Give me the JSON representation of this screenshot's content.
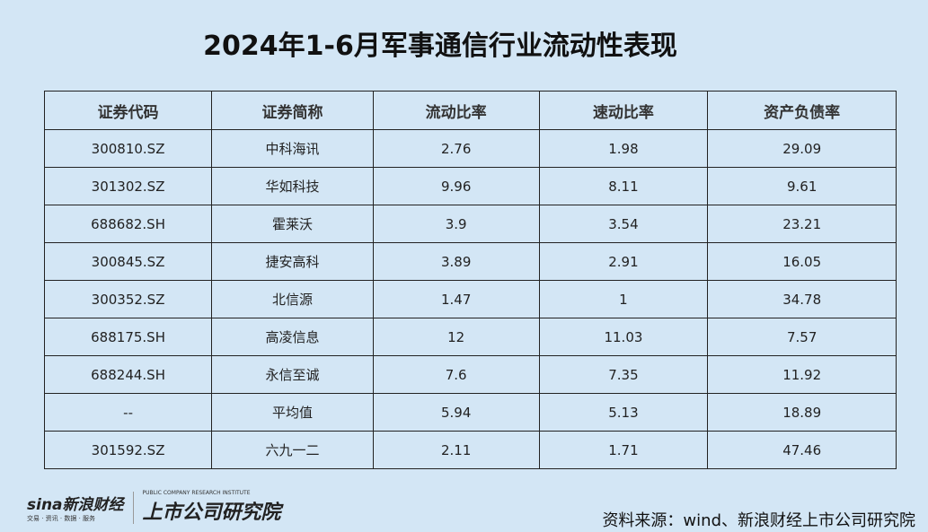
{
  "title": "2024年1-6月军事通信行业流动性表现",
  "table": {
    "headers": [
      "证券代码",
      "证券简称",
      "流动比率",
      "速动比率",
      "资产负债率"
    ],
    "rows": [
      [
        "300810.SZ",
        "中科海讯",
        "2.76",
        "1.98",
        "29.09"
      ],
      [
        "301302.SZ",
        "华如科技",
        "9.96",
        "8.11",
        "9.61"
      ],
      [
        "688682.SH",
        "霍莱沃",
        "3.9",
        "3.54",
        "23.21"
      ],
      [
        "300845.SZ",
        "捷安高科",
        "3.89",
        "2.91",
        "16.05"
      ],
      [
        "300352.SZ",
        "北信源",
        "1.47",
        "1",
        "34.78"
      ],
      [
        "688175.SH",
        "高凌信息",
        "12",
        "11.03",
        "7.57"
      ],
      [
        "688244.SH",
        "永信至诚",
        "7.6",
        "7.35",
        "11.92"
      ],
      [
        "--",
        "平均值",
        "5.94",
        "5.13",
        "18.89"
      ],
      [
        "301592.SZ",
        "六九一二",
        "2.11",
        "1.71",
        "47.46"
      ]
    ]
  },
  "logo": {
    "sina": "sina新浪财经",
    "sina_sub": "交易 · 资讯 · 数据 · 服务",
    "institute": "上市公司研究院",
    "institute_sub": "PUBLIC COMPANY RESEARCH INSTITUTE"
  },
  "source": "资料来源：wind、新浪财经上市公司研究院",
  "colors": {
    "background": "#d3e6f5",
    "border": "#222222",
    "sina_red": "#c8161d"
  }
}
